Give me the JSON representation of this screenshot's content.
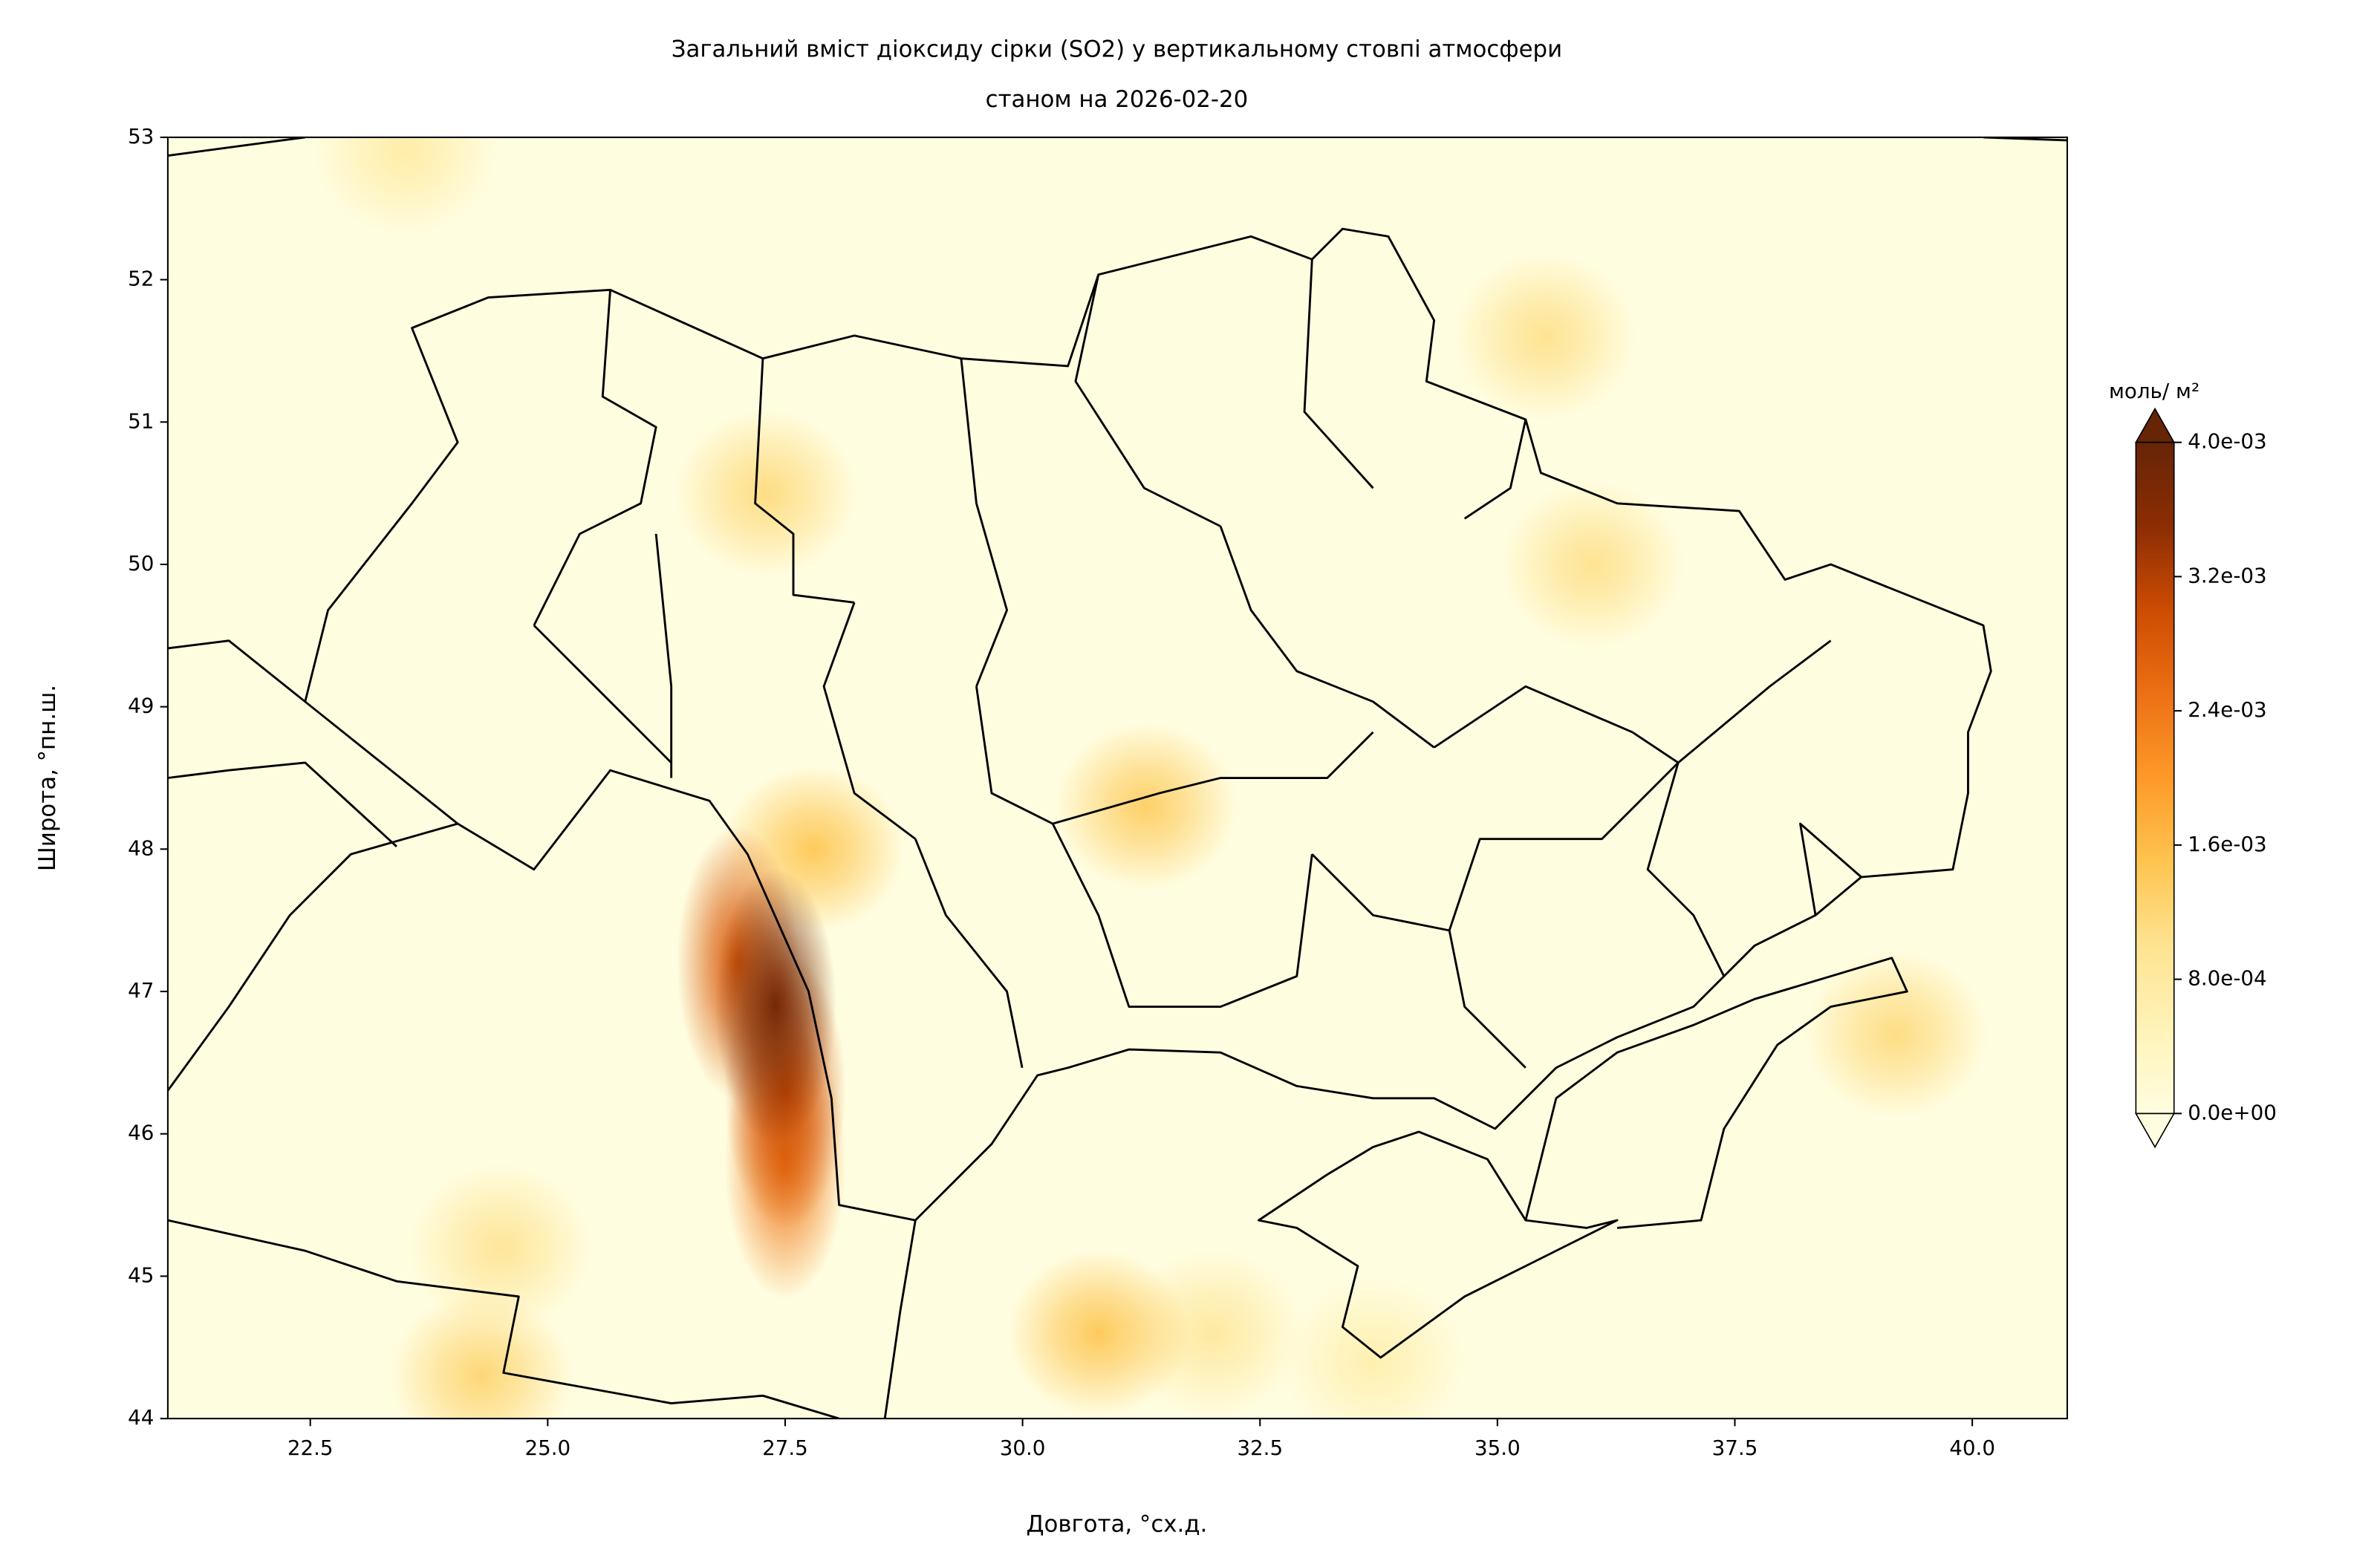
{
  "chart_data": {
    "type": "contour-map",
    "title": "Загальний вміст діоксиду сірки (SO2) у вертикальному стовпі атмосфери",
    "subtitle": "станом на 2026-02-20",
    "x_label": "Довгота, °сх.д.",
    "y_label": "Широта, °пн.ш.",
    "xlim": [
      21,
      41
    ],
    "ylim": [
      44,
      53
    ],
    "xticks": [
      22.5,
      {
        "value": 25,
        "label": "25.0"
      },
      27.5,
      {
        "value": 30,
        "label": "30.0"
      },
      32.5,
      {
        "value": 35,
        "label": "35.0"
      },
      37.5,
      {
        "value": 40,
        "label": "40.0"
      }
    ],
    "yticks": [
      44,
      45,
      46,
      47,
      48,
      49,
      50,
      51,
      52,
      53
    ],
    "hotspots": {
      "x": [
        27.4,
        27.0,
        27.5,
        27.8,
        31.3,
        30.8,
        24.3,
        24.5,
        35.5,
        36.0,
        39.2,
        27.3,
        23.5,
        32.0,
        33.7,
        27.5
      ],
      "y": [
        46.9,
        47.2,
        45.8,
        48.0,
        48.3,
        44.6,
        44.3,
        45.2,
        51.6,
        50.0,
        46.7,
        50.5,
        52.9,
        44.6,
        44.4,
        46.3
      ],
      "values": [
        0.0038,
        0.0028,
        0.0024,
        0.0014,
        0.0013,
        0.0014,
        0.0012,
        0.0009,
        0.001,
        0.001,
        0.0011,
        0.0011,
        0.0007,
        0.0008,
        0.0006,
        0.003
      ]
    },
    "colorbar": {
      "label": "моль/ м²",
      "clim": [
        0,
        0.004
      ],
      "ticks": [
        {
          "value": 0,
          "label": "0.0e+00"
        },
        {
          "value": 0.0008,
          "label": "8.0e-04"
        },
        {
          "value": 0.0016,
          "label": "1.6e-03"
        },
        {
          "value": 0.0024,
          "label": "2.4e-03"
        },
        {
          "value": 0.0032,
          "label": "3.2e-03"
        },
        {
          "value": 0.004,
          "label": "4.0e-03"
        }
      ],
      "colors": [
        "#fffde0",
        "#fff3b8",
        "#fee391",
        "#fec44f",
        "#fe9929",
        "#ec7014",
        "#cc4c02",
        "#8c2d04",
        "#662506"
      ]
    }
  }
}
